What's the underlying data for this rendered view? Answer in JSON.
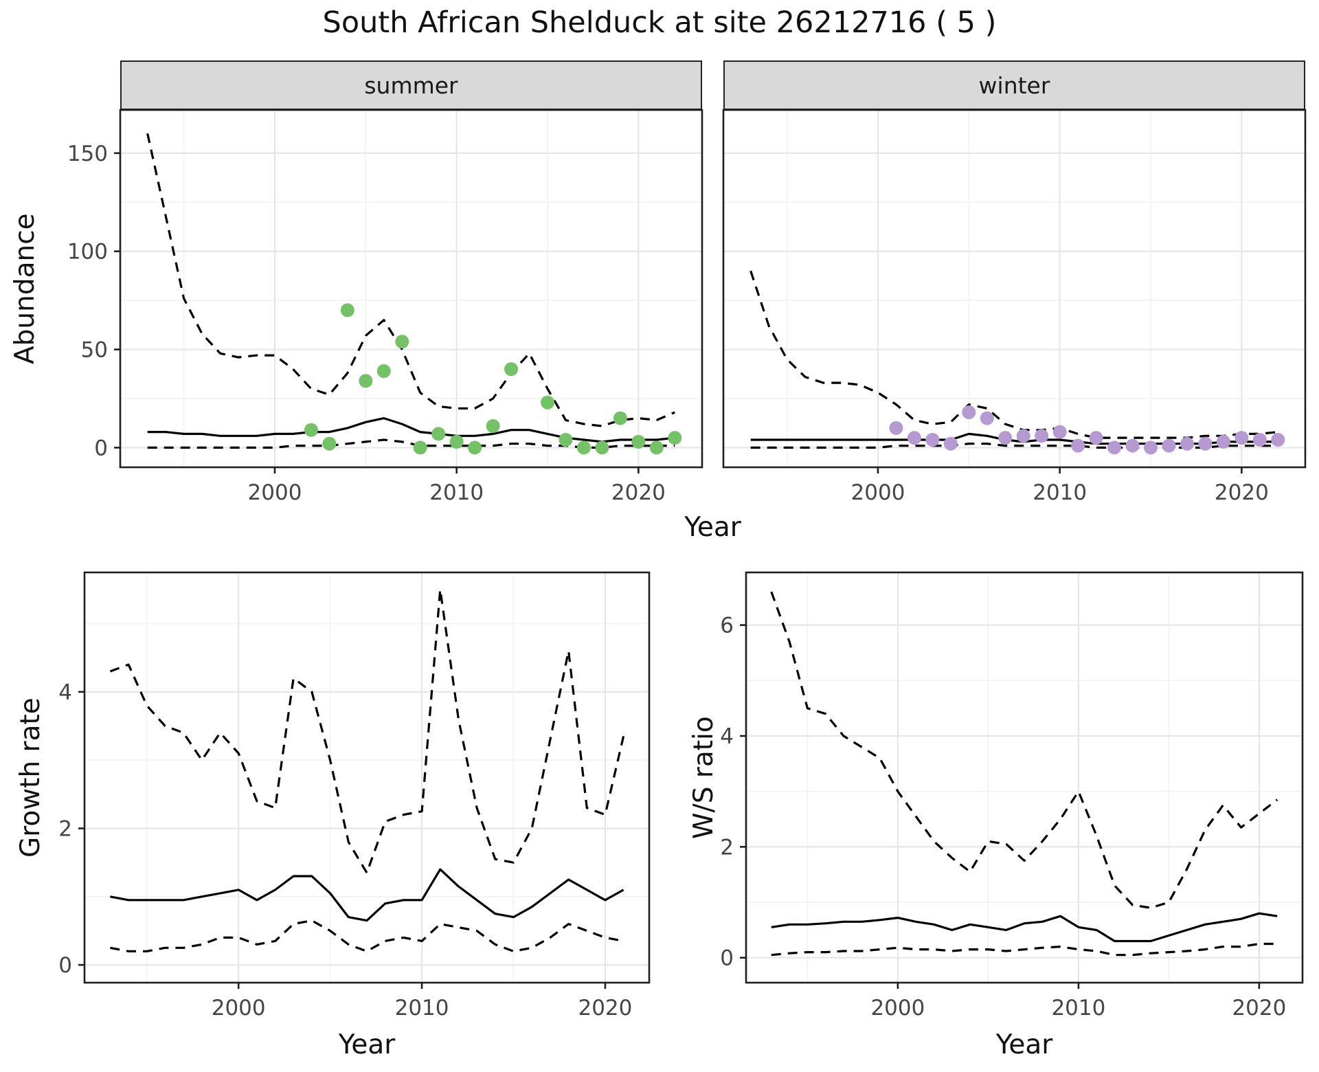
{
  "title": "South African Shelduck at site 26212716 ( 5 )",
  "colors": {
    "line": "#000000",
    "panel_border": "#1f1f1f",
    "grid_major": "#E6E6E6",
    "grid_minor": "#F2F2F2",
    "strip_bg": "#D9D9D9",
    "summer_point": "#74C266",
    "winter_point": "#B59AD2"
  },
  "chart_data": [
    {
      "id": "abundance_summer",
      "type": "line",
      "strip_label": "summer",
      "xlabel": "Year",
      "ylabel": "Abundance",
      "xlim": [
        1991.5,
        2023.5
      ],
      "ylim": [
        -10,
        172
      ],
      "xticks": [
        2000,
        2010,
        2020
      ],
      "yticks": [
        0,
        50,
        100,
        150
      ],
      "years": [
        1993,
        1994,
        1995,
        1996,
        1997,
        1998,
        1999,
        2000,
        2001,
        2002,
        2003,
        2004,
        2005,
        2006,
        2007,
        2008,
        2009,
        2010,
        2011,
        2012,
        2013,
        2014,
        2015,
        2016,
        2017,
        2018,
        2019,
        2020,
        2021,
        2022
      ],
      "series": [
        {
          "name": "upper_ci",
          "style": "dashed",
          "values": [
            160,
            118,
            76,
            58,
            48,
            46,
            47,
            47,
            40,
            30,
            27,
            38,
            57,
            65,
            50,
            28,
            21,
            20,
            20,
            25,
            38,
            48,
            30,
            14,
            12,
            11,
            14,
            15,
            14,
            18
          ]
        },
        {
          "name": "estimate",
          "style": "solid",
          "values": [
            8,
            8,
            7,
            7,
            6,
            6,
            6,
            7,
            7,
            8,
            8,
            10,
            13,
            15,
            12,
            8,
            7,
            6,
            6,
            7,
            9,
            9,
            7,
            5,
            4,
            3,
            4,
            4,
            4,
            5
          ]
        },
        {
          "name": "lower_ci",
          "style": "dashed",
          "values": [
            0,
            0,
            0,
            0,
            0,
            0,
            0,
            0,
            1,
            1,
            1,
            2,
            3,
            4,
            3,
            1,
            1,
            1,
            1,
            1,
            2,
            2,
            1,
            1,
            0,
            0,
            1,
            1,
            1,
            1
          ]
        }
      ],
      "points": {
        "name": "observed_counts_summer",
        "color": "#74C266",
        "years": [
          2002,
          2003,
          2004,
          2005,
          2006,
          2007,
          2008,
          2009,
          2010,
          2011,
          2012,
          2013,
          2015,
          2016,
          2017,
          2018,
          2019,
          2020,
          2021,
          2022
        ],
        "values": [
          9,
          2,
          70,
          34,
          39,
          54,
          0,
          7,
          3,
          0,
          11,
          40,
          23,
          4,
          0,
          0,
          15,
          3,
          0,
          5
        ]
      }
    },
    {
      "id": "abundance_winter",
      "type": "line",
      "strip_label": "winter",
      "xlabel": "Year",
      "ylabel": "Abundance",
      "xlim": [
        1991.5,
        2023.5
      ],
      "ylim": [
        -10,
        172
      ],
      "xticks": [
        2000,
        2010,
        2020
      ],
      "yticks": [
        0,
        50,
        100,
        150
      ],
      "years": [
        1993,
        1994,
        1995,
        1996,
        1997,
        1998,
        1999,
        2000,
        2001,
        2002,
        2003,
        2004,
        2005,
        2006,
        2007,
        2008,
        2009,
        2010,
        2011,
        2012,
        2013,
        2014,
        2015,
        2016,
        2017,
        2018,
        2019,
        2020,
        2021,
        2022
      ],
      "series": [
        {
          "name": "upper_ci",
          "style": "dashed",
          "values": [
            90,
            62,
            45,
            36,
            33,
            33,
            32,
            28,
            22,
            14,
            12,
            13,
            22,
            20,
            12,
            9,
            9,
            10,
            7,
            5,
            5,
            5,
            5,
            5,
            5,
            6,
            6,
            7,
            7,
            8
          ]
        },
        {
          "name": "estimate",
          "style": "solid",
          "values": [
            4,
            4,
            4,
            4,
            4,
            4,
            4,
            4,
            4,
            4,
            4,
            4,
            7,
            6,
            4,
            3,
            4,
            4,
            3,
            2,
            2,
            2,
            2,
            2,
            2,
            2,
            3,
            3,
            3,
            3
          ]
        },
        {
          "name": "lower_ci",
          "style": "dashed",
          "values": [
            0,
            0,
            0,
            0,
            0,
            0,
            0,
            0,
            1,
            1,
            1,
            1,
            2,
            2,
            1,
            1,
            1,
            1,
            1,
            0,
            0,
            0,
            0,
            0,
            0,
            0,
            1,
            1,
            1,
            1
          ]
        }
      ],
      "points": {
        "name": "observed_counts_winter",
        "color": "#B59AD2",
        "years": [
          2001,
          2002,
          2003,
          2004,
          2005,
          2006,
          2007,
          2008,
          2009,
          2010,
          2011,
          2012,
          2013,
          2014,
          2015,
          2016,
          2017,
          2018,
          2019,
          2020,
          2021,
          2022
        ],
        "values": [
          10,
          5,
          4,
          2,
          18,
          15,
          5,
          6,
          6,
          8,
          1,
          5,
          0,
          1,
          0,
          1,
          2,
          2,
          3,
          5,
          4,
          4
        ]
      }
    },
    {
      "id": "growth_rate",
      "type": "line",
      "strip_label": "",
      "xlabel": "Year",
      "ylabel": "Growth rate",
      "xlim": [
        1991.6,
        2022.4
      ],
      "ylim": [
        -0.26,
        5.75
      ],
      "xticks": [
        2000,
        2010,
        2020
      ],
      "yticks": [
        0,
        2,
        4
      ],
      "years": [
        1993,
        1994,
        1995,
        1996,
        1997,
        1998,
        1999,
        2000,
        2001,
        2002,
        2003,
        2004,
        2005,
        2006,
        2007,
        2008,
        2009,
        2010,
        2011,
        2012,
        2013,
        2014,
        2015,
        2016,
        2017,
        2018,
        2019,
        2020,
        2021
      ],
      "series": [
        {
          "name": "upper_ci",
          "style": "dashed",
          "values": [
            4.3,
            4.4,
            3.8,
            3.5,
            3.4,
            3.0,
            3.4,
            3.1,
            2.4,
            2.3,
            4.2,
            4.0,
            3.0,
            1.8,
            1.35,
            2.1,
            2.2,
            2.25,
            5.5,
            3.6,
            2.3,
            1.55,
            1.5,
            2.0,
            3.3,
            4.6,
            2.3,
            2.2,
            3.35
          ]
        },
        {
          "name": "estimate",
          "style": "solid",
          "values": [
            1.0,
            0.95,
            0.95,
            0.95,
            0.95,
            1.0,
            1.05,
            1.1,
            0.95,
            1.1,
            1.3,
            1.3,
            1.05,
            0.7,
            0.65,
            0.9,
            0.95,
            0.95,
            1.4,
            1.15,
            0.95,
            0.75,
            0.7,
            0.85,
            1.05,
            1.25,
            1.1,
            0.95,
            1.1
          ]
        },
        {
          "name": "lower_ci",
          "style": "dashed",
          "values": [
            0.25,
            0.2,
            0.2,
            0.25,
            0.25,
            0.3,
            0.4,
            0.4,
            0.3,
            0.35,
            0.6,
            0.65,
            0.5,
            0.3,
            0.2,
            0.35,
            0.4,
            0.35,
            0.6,
            0.55,
            0.5,
            0.3,
            0.2,
            0.25,
            0.4,
            0.6,
            0.5,
            0.4,
            0.35
          ]
        }
      ]
    },
    {
      "id": "ws_ratio",
      "type": "line",
      "strip_label": "",
      "xlabel": "Year",
      "ylabel": "W/S ratio",
      "xlim": [
        1991.6,
        2022.4
      ],
      "ylim": [
        -0.45,
        6.95
      ],
      "xticks": [
        2000,
        2010,
        2020
      ],
      "yticks": [
        0,
        2,
        4,
        6
      ],
      "years": [
        1993,
        1994,
        1995,
        1996,
        1997,
        1998,
        1999,
        2000,
        2001,
        2002,
        2003,
        2004,
        2005,
        2006,
        2007,
        2008,
        2009,
        2010,
        2011,
        2012,
        2013,
        2014,
        2015,
        2016,
        2017,
        2018,
        2019,
        2020,
        2021
      ],
      "series": [
        {
          "name": "upper_ci",
          "style": "dashed",
          "values": [
            6.6,
            5.7,
            4.5,
            4.4,
            4.0,
            3.8,
            3.6,
            3.0,
            2.55,
            2.1,
            1.8,
            1.55,
            2.1,
            2.05,
            1.75,
            2.1,
            2.5,
            3.0,
            2.2,
            1.3,
            0.95,
            0.9,
            1.0,
            1.6,
            2.3,
            2.75,
            2.35,
            2.6,
            2.85
          ]
        },
        {
          "name": "estimate",
          "style": "solid",
          "values": [
            0.55,
            0.6,
            0.6,
            0.62,
            0.65,
            0.65,
            0.68,
            0.72,
            0.65,
            0.6,
            0.5,
            0.6,
            0.55,
            0.5,
            0.62,
            0.65,
            0.75,
            0.55,
            0.5,
            0.3,
            0.3,
            0.3,
            0.4,
            0.5,
            0.6,
            0.65,
            0.7,
            0.8,
            0.75
          ]
        },
        {
          "name": "lower_ci",
          "style": "dashed",
          "values": [
            0.05,
            0.08,
            0.1,
            0.1,
            0.12,
            0.12,
            0.15,
            0.18,
            0.15,
            0.15,
            0.12,
            0.15,
            0.15,
            0.12,
            0.15,
            0.18,
            0.2,
            0.15,
            0.12,
            0.05,
            0.05,
            0.08,
            0.1,
            0.12,
            0.15,
            0.2,
            0.2,
            0.25,
            0.25
          ]
        }
      ]
    }
  ]
}
